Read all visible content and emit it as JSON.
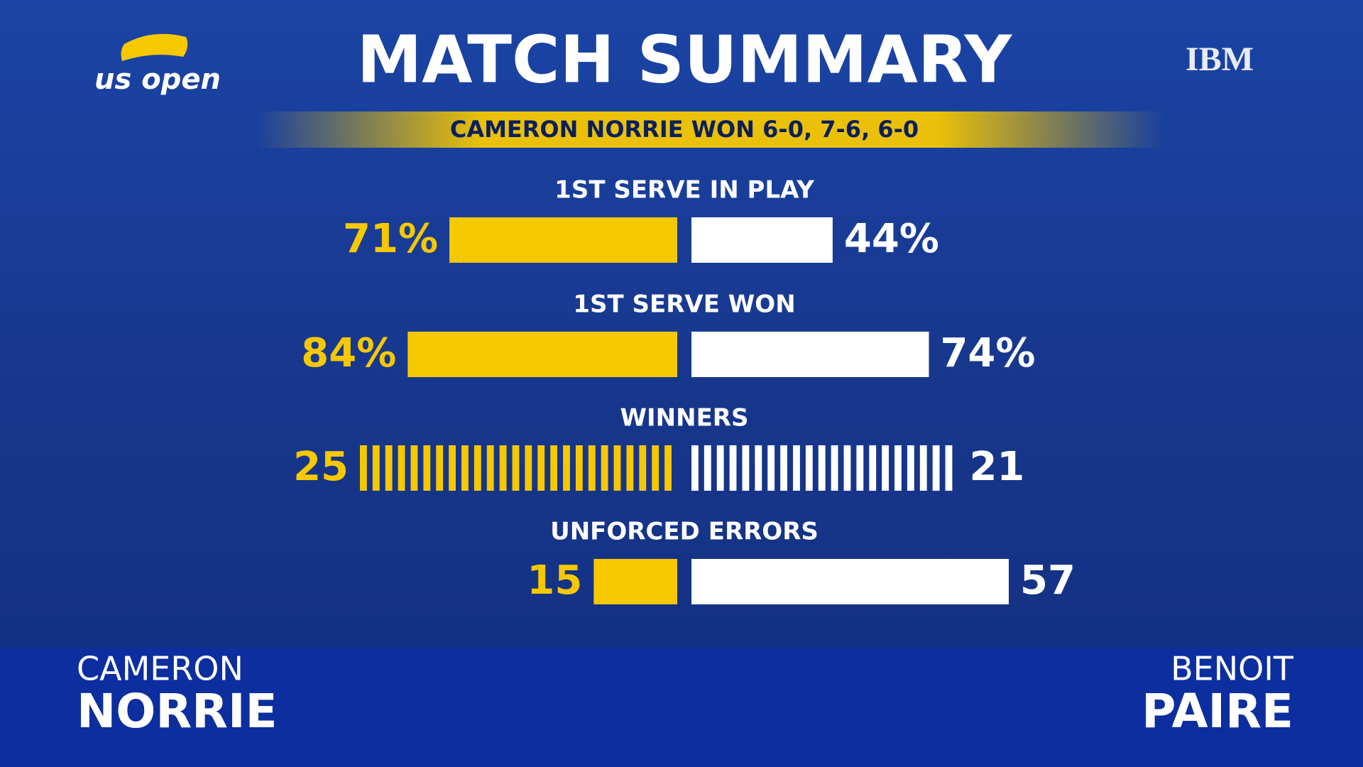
{
  "brand": {
    "logo": "us open",
    "sponsor": "IBM"
  },
  "players": {
    "left": {
      "first": "CAMERON",
      "last": "NORRIE"
    },
    "right": {
      "first": "BENOIT",
      "last": "PAIRE"
    }
  },
  "chart_data": {
    "type": "butterfly",
    "title": "MATCH SUMMARY",
    "subtitle": "CAMERON NORRIE WON 6-0, 7-6, 6-0",
    "categories": [
      "1ST SERVE IN PLAY",
      "1ST SERVE WON",
      "WINNERS",
      "UNFORCED ERRORS"
    ],
    "units": [
      "percent",
      "percent",
      "count",
      "count"
    ],
    "bar_style": [
      "solid",
      "solid",
      "striped",
      "solid"
    ],
    "series": [
      {
        "name": "NORRIE",
        "color": "#f5c800",
        "values": [
          71,
          84,
          25,
          15
        ],
        "value_labels": [
          "71%",
          "84%",
          "25",
          "15"
        ]
      },
      {
        "name": "PAIRE",
        "color": "#ffffff",
        "values": [
          44,
          74,
          21,
          57
        ],
        "value_labels": [
          "44%",
          "74%",
          "21",
          "57"
        ]
      }
    ]
  }
}
